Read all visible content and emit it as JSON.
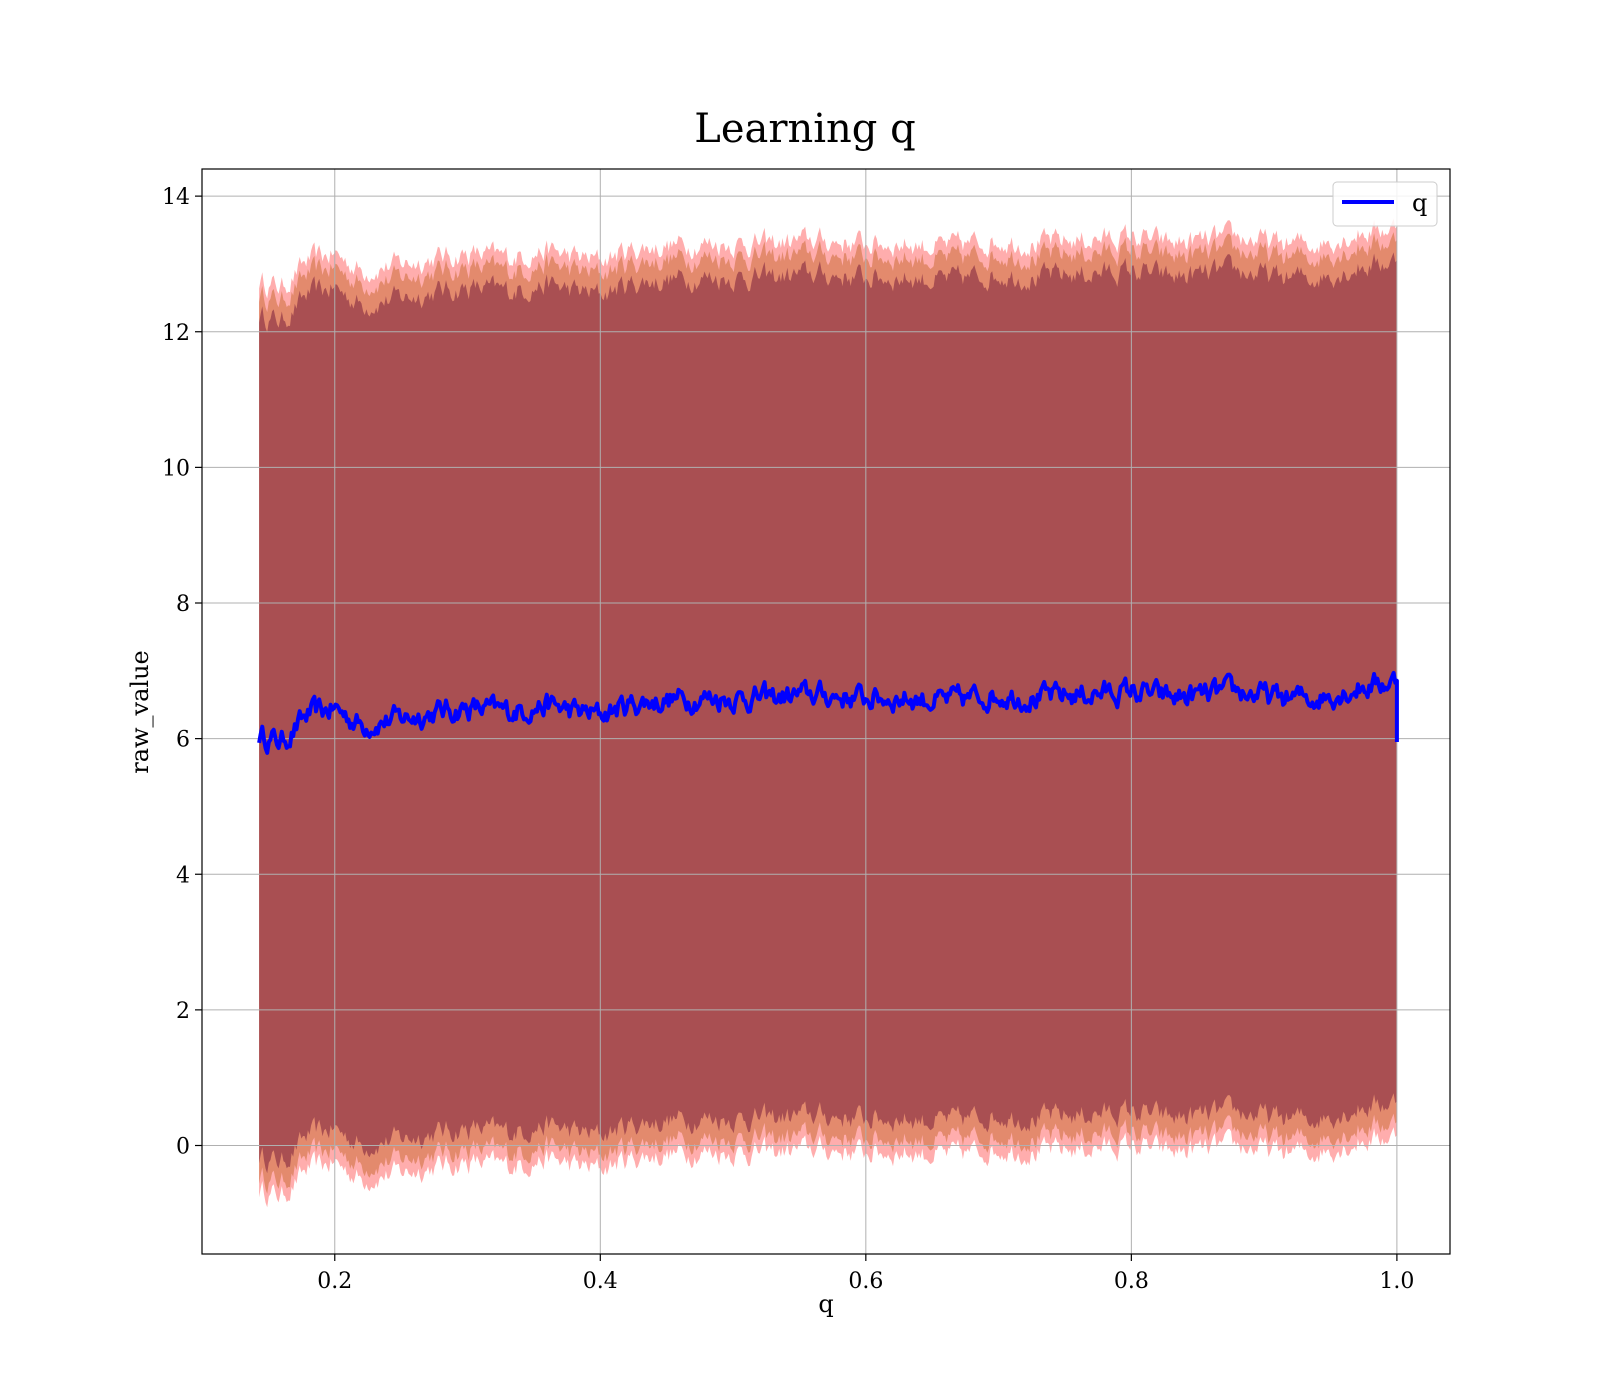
{
  "chart_data": {
    "type": "area",
    "title": "Learning q",
    "xlabel": "q",
    "ylabel": "raw_value",
    "xlim": [
      0.1,
      1.04
    ],
    "ylim": [
      -1.6,
      14.4
    ],
    "xticks": [
      "0.2",
      "0.4",
      "0.6",
      "0.8",
      "1.0"
    ],
    "yticks": [
      "0",
      "2",
      "4",
      "6",
      "8",
      "10",
      "12",
      "14"
    ],
    "grid": true,
    "legend": {
      "placement": "top-right",
      "entries": [
        {
          "label": "q",
          "color": "#0000ff"
        }
      ]
    },
    "colors": {
      "line": "#0000ff",
      "band_outer": "#ff0000",
      "band_middle": "#c06020",
      "band_inner": "#7a1f3c"
    },
    "series": [
      {
        "name": "q",
        "kind": "line",
        "x": [
          0.143,
          0.16,
          0.18,
          0.2,
          0.22,
          0.25,
          0.28,
          0.3,
          0.33,
          0.36,
          0.38,
          0.4,
          0.42,
          0.44,
          0.47,
          0.5,
          0.53,
          0.56,
          0.6,
          0.63,
          0.66,
          0.7,
          0.73,
          0.76,
          0.8,
          0.83,
          0.86,
          0.88,
          0.91,
          0.94,
          0.97,
          1.0
        ],
        "y": [
          6.05,
          5.95,
          6.35,
          6.45,
          6.2,
          6.3,
          6.4,
          6.45,
          6.4,
          6.5,
          6.4,
          6.35,
          6.5,
          6.55,
          6.6,
          6.6,
          6.6,
          6.65,
          6.6,
          6.6,
          6.55,
          6.65,
          6.6,
          6.65,
          6.7,
          6.6,
          6.65,
          6.7,
          6.6,
          6.6,
          6.75,
          6.85
        ]
      }
    ],
    "bands": [
      {
        "level": "outer",
        "offset_low": -6.7,
        "offset_high": 6.7
      },
      {
        "level": "middle",
        "offset_low": -6.5,
        "offset_high": 6.5
      },
      {
        "level": "inner",
        "offset_low": -6.2,
        "offset_high": 6.2
      }
    ],
    "end_drop": {
      "x": 1.0,
      "y": 5.95
    }
  }
}
